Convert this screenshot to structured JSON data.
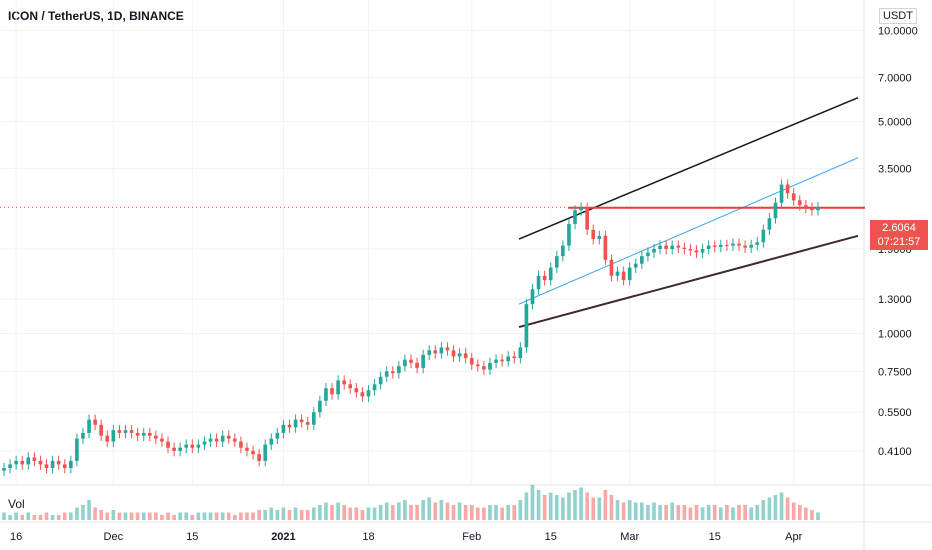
{
  "header": {
    "title": "ICON / TetherUS, 1D, BINANCE",
    "currency": "USDT",
    "volume_label": "Vol"
  },
  "price_badge": {
    "last_price": "2.6064",
    "countdown": "07:21:57"
  },
  "colors": {
    "up": "#26a69a",
    "down": "#ef5350",
    "resistance": "#e53935",
    "channel_top": "#131722",
    "channel_bottom": "#3e2a2a",
    "midline": "#42a5f5",
    "grid": "#f0f3fa"
  },
  "chart_data": {
    "type": "candlestick",
    "title": "ICON / TetherUS, 1D, BINANCE",
    "y_scale": "log",
    "y_ticks": [
      0.41,
      0.55,
      0.75,
      1.0,
      1.3,
      1.9,
      2.6064,
      3.5,
      5.0,
      7.0,
      10.0
    ],
    "y_tick_labels": [
      "0.4100",
      "0.5500",
      "0.7500",
      "1.0000",
      "1.3000",
      "1.9000",
      "2.6064",
      "3.5000",
      "5.0000",
      "7.0000",
      "10.0000"
    ],
    "x_tick_labels": [
      "16",
      "Dec",
      "15",
      "2021",
      "18",
      "Feb",
      "15",
      "Mar",
      "15",
      "Apr"
    ],
    "last_price": 2.6064,
    "series_close": [
      0.36,
      0.37,
      0.38,
      0.37,
      0.39,
      0.38,
      0.37,
      0.36,
      0.38,
      0.37,
      0.36,
      0.38,
      0.45,
      0.47,
      0.52,
      0.5,
      0.46,
      0.44,
      0.48,
      0.47,
      0.48,
      0.47,
      0.46,
      0.47,
      0.46,
      0.45,
      0.44,
      0.42,
      0.41,
      0.42,
      0.43,
      0.42,
      0.43,
      0.44,
      0.45,
      0.44,
      0.46,
      0.45,
      0.44,
      0.42,
      0.41,
      0.4,
      0.38,
      0.43,
      0.45,
      0.47,
      0.5,
      0.49,
      0.52,
      0.51,
      0.5,
      0.55,
      0.6,
      0.66,
      0.63,
      0.7,
      0.68,
      0.66,
      0.64,
      0.62,
      0.65,
      0.68,
      0.72,
      0.75,
      0.74,
      0.78,
      0.82,
      0.8,
      0.77,
      0.85,
      0.88,
      0.86,
      0.9,
      0.88,
      0.84,
      0.86,
      0.83,
      0.79,
      0.78,
      0.76,
      0.8,
      0.82,
      0.81,
      0.84,
      0.83,
      0.9,
      1.25,
      1.4,
      1.55,
      1.5,
      1.65,
      1.8,
      1.95,
      2.3,
      2.55,
      2.6,
      2.2,
      2.05,
      2.1,
      1.75,
      1.55,
      1.6,
      1.5,
      1.65,
      1.7,
      1.8,
      1.85,
      1.9,
      1.95,
      1.9,
      1.95,
      1.92,
      1.9,
      1.88,
      1.85,
      1.9,
      1.95,
      1.93,
      1.96,
      1.95,
      1.98,
      1.95,
      1.92,
      1.96,
      2.0,
      2.2,
      2.4,
      2.7,
      3.1,
      2.9,
      2.75,
      2.65,
      2.6,
      2.55,
      2.61
    ],
    "series_volume": [
      3,
      2,
      3,
      2,
      3,
      2,
      2,
      3,
      2,
      2,
      3,
      3,
      5,
      6,
      8,
      5,
      4,
      3,
      4,
      3,
      3,
      3,
      3,
      3,
      3,
      3,
      2,
      3,
      2,
      3,
      3,
      2,
      3,
      3,
      3,
      3,
      3,
      3,
      2,
      3,
      3,
      3,
      4,
      4,
      5,
      4,
      5,
      4,
      5,
      4,
      4,
      5,
      6,
      7,
      6,
      7,
      6,
      5,
      5,
      4,
      5,
      5,
      6,
      7,
      6,
      7,
      8,
      6,
      6,
      8,
      9,
      7,
      8,
      7,
      6,
      7,
      6,
      6,
      5,
      5,
      6,
      6,
      5,
      6,
      6,
      8,
      11,
      14,
      12,
      10,
      11,
      10,
      9,
      11,
      12,
      13,
      11,
      9,
      9,
      12,
      10,
      8,
      7,
      8,
      7,
      7,
      6,
      7,
      6,
      6,
      7,
      6,
      6,
      5,
      6,
      5,
      6,
      6,
      5,
      6,
      5,
      6,
      6,
      5,
      6,
      8,
      9,
      10,
      11,
      9,
      7,
      6,
      5,
      4,
      3
    ]
  }
}
